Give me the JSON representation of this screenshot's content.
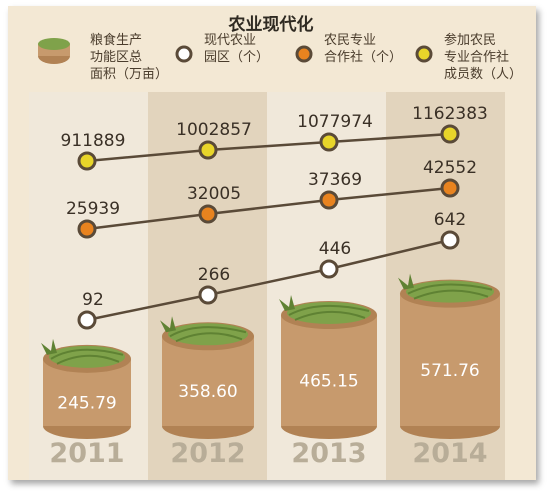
{
  "chart_data": {
    "type": "line+bar",
    "title": "农业现代化",
    "categories": [
      "2011",
      "2012",
      "2013",
      "2014"
    ],
    "series": [
      {
        "name": "粮食生产功能区总面积（万亩）",
        "kind": "bar",
        "values": [
          245.79,
          358.6,
          465.15,
          571.76
        ],
        "labels": [
          "245.79",
          "358.60",
          "465.15",
          "571.76"
        ],
        "marker_color": "#c79a6d"
      },
      {
        "name": "现代农业园区（个）",
        "kind": "line",
        "values": [
          92,
          266,
          446,
          642
        ],
        "labels": [
          "92",
          "266",
          "446",
          "642"
        ],
        "marker_color": "#ffffff"
      },
      {
        "name": "农民专业合作社（个）",
        "kind": "line",
        "values": [
          25939,
          32005,
          37369,
          42552
        ],
        "labels": [
          "25939",
          "32005",
          "37369",
          "42552"
        ],
        "marker_color": "#e8831f"
      },
      {
        "name": "参加农民专业合作社成员数（人）",
        "kind": "line",
        "values": [
          911889,
          1002857,
          1077974,
          1162383
        ],
        "labels": [
          "911889",
          "1002857",
          "1077974",
          "1162383"
        ],
        "marker_color": "#e8d52a"
      }
    ],
    "legend": "top",
    "grid": false
  },
  "legend_lines": [
    [
      "粮食生产",
      "功能区总",
      "面积（万亩）"
    ],
    [
      "现代农业",
      "园区（个）"
    ],
    [
      "农民专业",
      "合作社（个）"
    ],
    [
      "参加农民",
      "专业合作社",
      "成员数（人）"
    ]
  ],
  "colors": {
    "line": "#5a4a38",
    "column_light": "#f0e8da",
    "column_dark": "#e2d4bd",
    "basket": "#c79a6d",
    "basket_rim": "#b18254",
    "grass": "#7fa24a",
    "grass_dark": "#5f8233",
    "year": "#b8ad98"
  }
}
